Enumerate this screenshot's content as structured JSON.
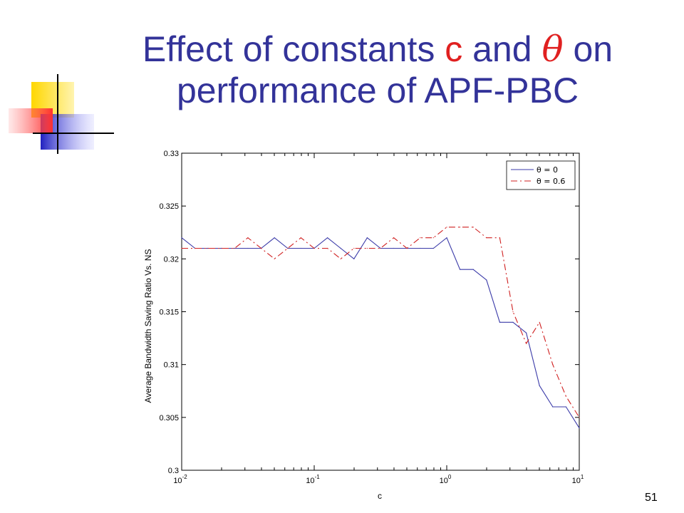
{
  "slide": {
    "title_line1_a": "Effect of constants ",
    "title_c": "c",
    "title_line1_b": " and ",
    "title_theta": "θ",
    "title_line1_c": " on",
    "title_line2": "performance of APF-PBC",
    "page_number": "51"
  },
  "chart_data": {
    "type": "line",
    "title": "",
    "xlabel": "c",
    "ylabel": "Average Bandwidth Saving Ratio Vs. NS",
    "xscale": "log",
    "xlim": [
      0.01,
      10
    ],
    "ylim": [
      0.3,
      0.33
    ],
    "x_ticks": [
      {
        "base": "10",
        "exp": "-2",
        "value": 0.01
      },
      {
        "base": "10",
        "exp": "-1",
        "value": 0.1
      },
      {
        "base": "10",
        "exp": "0",
        "value": 1
      },
      {
        "base": "10",
        "exp": "1",
        "value": 10
      }
    ],
    "y_ticks": [
      "0.3",
      "0.305",
      "0.31",
      "0.315",
      "0.32",
      "0.325",
      "0.33"
    ],
    "legend_position": "top-right",
    "x": [
      0.01,
      0.0126,
      0.0158,
      0.02,
      0.0251,
      0.0316,
      0.0398,
      0.0501,
      0.0631,
      0.0794,
      0.1,
      0.1259,
      0.1585,
      0.1995,
      0.2512,
      0.3162,
      0.3981,
      0.5012,
      0.631,
      0.7943,
      1.0,
      1.2589,
      1.5849,
      1.9953,
      2.5119,
      3.1623,
      3.9811,
      5.0119,
      6.3096,
      7.9433,
      10.0
    ],
    "series": [
      {
        "name": "θ = 0",
        "color": "#3a3aa8",
        "dash": "solid",
        "values": [
          0.322,
          0.321,
          0.321,
          0.321,
          0.321,
          0.321,
          0.321,
          0.322,
          0.321,
          0.321,
          0.321,
          0.322,
          0.321,
          0.32,
          0.322,
          0.321,
          0.321,
          0.321,
          0.321,
          0.321,
          0.322,
          0.319,
          0.319,
          0.318,
          0.314,
          0.314,
          0.313,
          0.308,
          0.306,
          0.306,
          0.304
        ]
      },
      {
        "name": "θ = 0.6",
        "color": "#d02020",
        "dash": "dashdot",
        "values": [
          0.321,
          0.321,
          0.321,
          0.321,
          0.321,
          0.322,
          0.321,
          0.32,
          0.321,
          0.322,
          0.321,
          0.321,
          0.32,
          0.321,
          0.321,
          0.321,
          0.322,
          0.321,
          0.322,
          0.322,
          0.323,
          0.323,
          0.323,
          0.322,
          0.322,
          0.315,
          0.312,
          0.314,
          0.31,
          0.307,
          0.305
        ]
      }
    ]
  }
}
